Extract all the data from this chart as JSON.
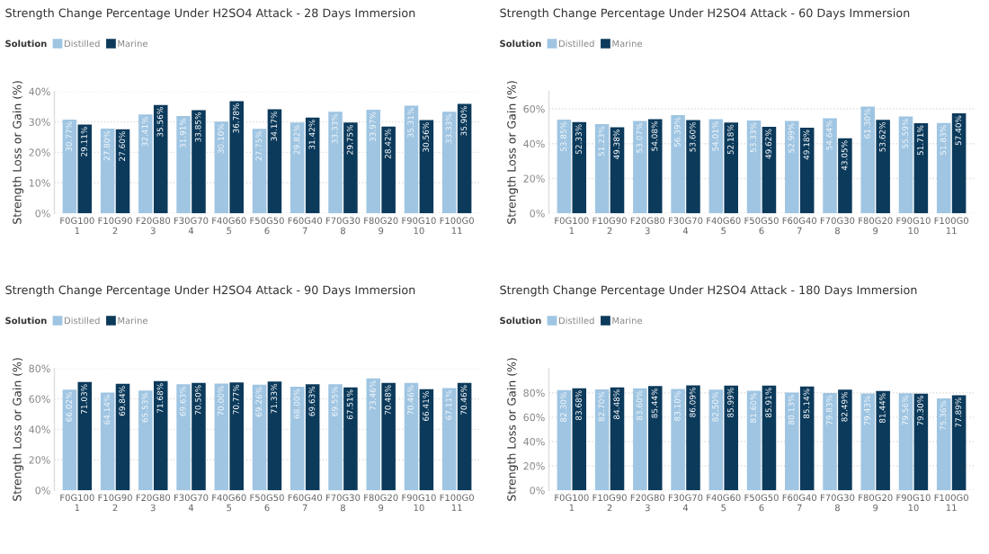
{
  "chart_data": [
    {
      "type": "bar",
      "title": "Strength Change Percentage Under H2SO4 Attack - 28 Days Immersion",
      "ylabel": "Strength Loss or Gain (%)",
      "legend_title": "Solution",
      "legend": "top left",
      "grid": "y",
      "categories": [
        "F0G100\n1",
        "F10G90\n2",
        "F20G80\n3",
        "F30G70\n4",
        "F40G60\n5",
        "F50G50\n6",
        "F60G40\n7",
        "F70G30\n8",
        "F80G20\n9",
        "F90G10\n10",
        "F100G0\n11"
      ],
      "ylim": [
        0,
        40
      ],
      "yticks": [
        {
          "value": 0,
          "label": "0%"
        },
        {
          "value": 10,
          "label": "10%"
        },
        {
          "value": 20,
          "label": "20%"
        },
        {
          "value": 30,
          "label": "30%"
        },
        {
          "value": 40,
          "label": "40%"
        }
      ],
      "series": [
        {
          "name": "Distilled",
          "color": "#9fc5e2",
          "values": [
            30.77,
            27.8,
            32.41,
            31.91,
            30.1,
            27.75,
            29.82,
            33.33,
            33.97,
            35.31,
            33.33
          ],
          "value_labels": [
            "30.77%",
            "27.80%",
            "32.41%",
            "31.91%",
            "30.10%",
            "27.75%",
            "29.82%",
            "33.33%",
            "33.97%",
            "35.31%",
            "33.33%"
          ]
        },
        {
          "name": "Marine",
          "color": "#0c3a5b",
          "values": [
            29.11,
            27.6,
            35.56,
            33.85,
            36.78,
            34.17,
            31.42,
            29.75,
            28.42,
            30.56,
            35.9
          ],
          "value_labels": [
            "29.11%",
            "27.60%",
            "35.56%",
            "33.85%",
            "36.78%",
            "34.17%",
            "31.42%",
            "29.75%",
            "28.42%",
            "30.56%",
            "35.90%"
          ]
        }
      ]
    },
    {
      "type": "bar",
      "title": "Strength Change Percentage Under H2SO4 Attack - 60 Days Immersion",
      "ylabel": "Strength Loss or Gain (%)",
      "legend_title": "Solution",
      "legend": "top left",
      "grid": "y",
      "categories": [
        "F0G100\n1",
        "F10G90\n2",
        "F20G80\n3",
        "F30G70\n4",
        "F40G60\n5",
        "F50G50\n6",
        "F60G40\n7",
        "F70G30\n8",
        "F80G20\n9",
        "F90G10\n10",
        "F100G0\n11"
      ],
      "ylim": [
        0,
        70
      ],
      "yticks": [
        {
          "value": 0,
          "label": "0%"
        },
        {
          "value": 20,
          "label": "20%"
        },
        {
          "value": 40,
          "label": "40%"
        },
        {
          "value": 60,
          "label": "60%"
        }
      ],
      "series": [
        {
          "name": "Distilled",
          "color": "#9fc5e2",
          "values": [
            53.85,
            51.23,
            53.07,
            56.39,
            54.01,
            53.33,
            52.99,
            54.64,
            61.3,
            55.59,
            51.83
          ],
          "value_labels": [
            "53.85%",
            "51.23%",
            "53.07%",
            "56.39%",
            "54.01%",
            "53.33%",
            "52.99%",
            "54.64%",
            "61.30%",
            "55.59%",
            "51.83%"
          ]
        },
        {
          "name": "Marine",
          "color": "#0c3a5b",
          "values": [
            52.33,
            49.38,
            54.08,
            53.6,
            52.18,
            49.62,
            49.18,
            43.05,
            53.62,
            51.71,
            57.4
          ],
          "value_labels": [
            "52.33%",
            "49.38%",
            "54.08%",
            "53.60%",
            "52.18%",
            "49.62%",
            "49.18%",
            "43.05%",
            "53.62%",
            "51.71%",
            "57.40%"
          ]
        }
      ]
    },
    {
      "type": "bar",
      "title": "Strength Change Percentage Under H2SO4 Attack - 90 Days Immersion",
      "ylabel": "Strength Loss or Gain (%)",
      "legend_title": "Solution",
      "legend": "top left",
      "grid": "y",
      "categories": [
        "F0G100\n1",
        "F10G90\n2",
        "F20G80\n3",
        "F30G70\n4",
        "F40G60\n5",
        "F50G50\n6",
        "F60G40\n7",
        "F70G30\n8",
        "F80G20\n9",
        "F90G10\n10",
        "F100G0\n11"
      ],
      "ylim": [
        0,
        80
      ],
      "yticks": [
        {
          "value": 0,
          "label": "0%"
        },
        {
          "value": 20,
          "label": "20%"
        },
        {
          "value": 40,
          "label": "40%"
        },
        {
          "value": 60,
          "label": "60%"
        },
        {
          "value": 80,
          "label": "80%"
        }
      ],
      "series": [
        {
          "name": "Distilled",
          "color": "#9fc5e2",
          "values": [
            66.02,
            64.14,
            65.53,
            69.63,
            70.0,
            69.26,
            68.0,
            69.55,
            73.46,
            70.46,
            67.11
          ],
          "value_labels": [
            "66.02%",
            "64.14%",
            "65.53%",
            "69.63%",
            "70.00%",
            "69.26%",
            "68.00%",
            "69.55%",
            "73.46%",
            "70.46%",
            "67.11%"
          ]
        },
        {
          "name": "Marine",
          "color": "#0c3a5b",
          "values": [
            71.03,
            69.84,
            71.68,
            70.5,
            70.77,
            71.33,
            69.63,
            67.51,
            70.48,
            66.41,
            70.46
          ],
          "value_labels": [
            "71.03%",
            "69.84%",
            "71.68%",
            "70.50%",
            "70.77%",
            "71.33%",
            "69.63%",
            "67.51%",
            "70.48%",
            "66.41%",
            "70.46%"
          ]
        }
      ]
    },
    {
      "type": "bar",
      "title": "Strength Change Percentage Under H2SO4 Attack - 180 Days Immersion",
      "ylabel": "Strength Loss or Gain (%)",
      "legend_title": "Solution",
      "legend": "top left",
      "grid": "y",
      "categories": [
        "F0G100\n1",
        "F10G90\n2",
        "F20G80\n3",
        "F30G70\n4",
        "F40G60\n5",
        "F50G50\n6",
        "F60G40\n7",
        "F70G30\n8",
        "F80G20\n9",
        "F90G10\n10",
        "F100G0\n11"
      ],
      "ylim": [
        0,
        100
      ],
      "yticks": [
        {
          "value": 0,
          "label": "0%"
        },
        {
          "value": 20,
          "label": "20%"
        },
        {
          "value": 40,
          "label": "40%"
        },
        {
          "value": 60,
          "label": "60%"
        },
        {
          "value": 80,
          "label": "80%"
        }
      ],
      "series": [
        {
          "name": "Distilled",
          "color": "#9fc5e2",
          "values": [
            82.3,
            82.7,
            83.6,
            83.1,
            82.5,
            81.6,
            80.13,
            79.83,
            79.43,
            79.56,
            75.36
          ],
          "value_labels": [
            "82.30%",
            "82.70%",
            "83.60%",
            "83.10%",
            "82.50%",
            "81.60%",
            "80.13%",
            "79.83%",
            "79.43%",
            "79.56%",
            "75.36%"
          ]
        },
        {
          "name": "Marine",
          "color": "#0c3a5b",
          "values": [
            83.68,
            84.48,
            85.44,
            86.09,
            85.99,
            85.91,
            85.14,
            82.49,
            81.44,
            79.3,
            77.89
          ],
          "value_labels": [
            "83.68%",
            "84.48%",
            "85.44%",
            "86.09%",
            "85.99%",
            "85.91%",
            "85.14%",
            "82.49%",
            "81.44%",
            "79.30%",
            "77.89%"
          ]
        }
      ]
    }
  ]
}
